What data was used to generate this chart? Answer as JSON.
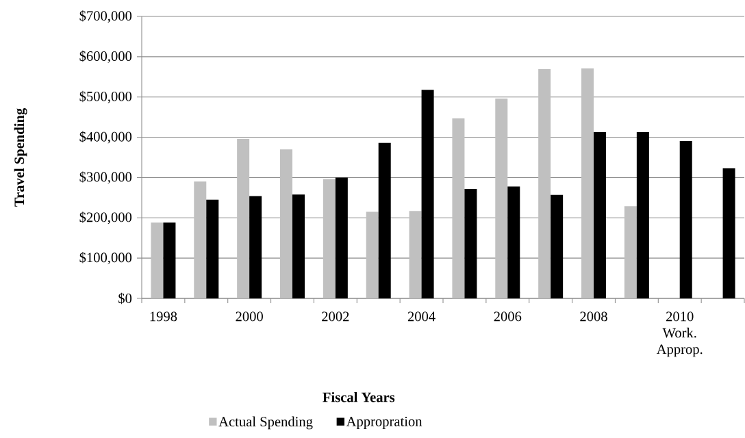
{
  "chart_data": {
    "type": "bar",
    "xlabel": "Fiscal Years",
    "ylabel": "Travel Spending",
    "categories": [
      "1998",
      null,
      "2000",
      null,
      "2002",
      null,
      "2004",
      null,
      "2006",
      null,
      "2008",
      null,
      "2010 Work. Approp.",
      null
    ],
    "series": [
      {
        "name": "Actual Spending",
        "color": "#c0c0c0",
        "values": [
          188000,
          290000,
          396000,
          370000,
          296000,
          215000,
          217000,
          447000,
          496000,
          569000,
          571000,
          229000,
          null,
          null
        ]
      },
      {
        "name": "Appropration",
        "color": "#000000",
        "values": [
          188000,
          245000,
          254000,
          258000,
          300000,
          386000,
          518000,
          272000,
          278000,
          257000,
          413000,
          413000,
          391000,
          323000
        ]
      }
    ],
    "ylim": [
      0,
      700000
    ],
    "yticks": [
      {
        "value": 0,
        "label": "$0"
      },
      {
        "value": 100000,
        "label": "$100,000"
      },
      {
        "value": 200000,
        "label": "$200,000"
      },
      {
        "value": 300000,
        "label": "$300,000"
      },
      {
        "value": 400000,
        "label": "$400,000"
      },
      {
        "value": 500000,
        "label": "$500,000"
      },
      {
        "value": 600000,
        "label": "$600,000"
      },
      {
        "value": 700000,
        "label": "$700,000"
      }
    ],
    "grid": "y",
    "legend": "bottom"
  }
}
